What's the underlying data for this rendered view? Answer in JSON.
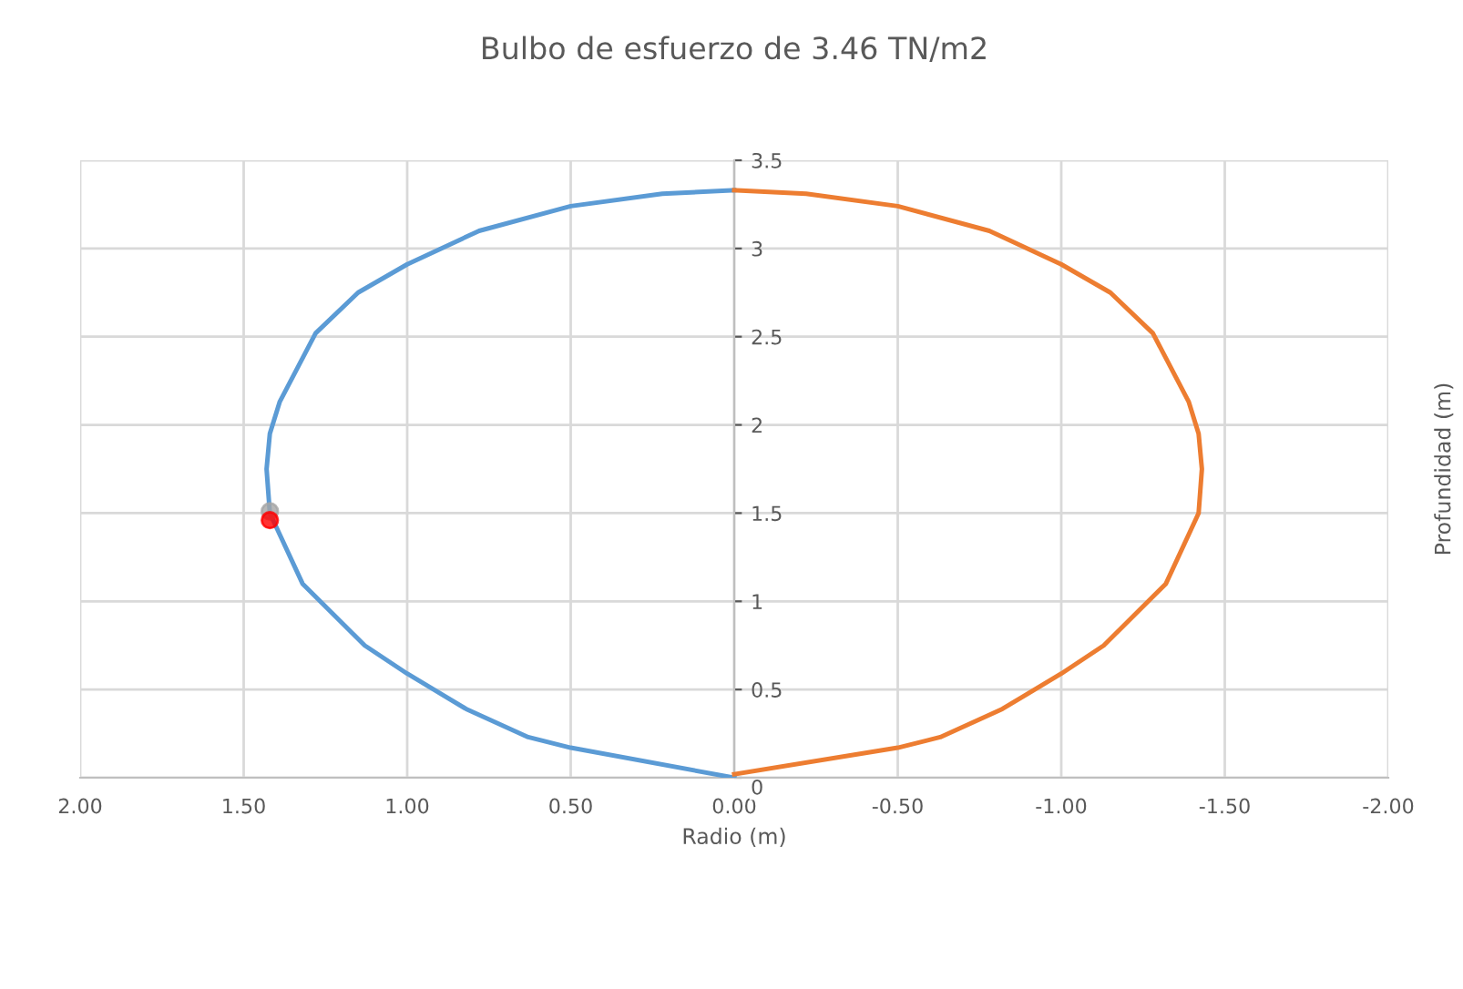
{
  "chart_data": {
    "type": "line",
    "title": "Bulbo de esfuerzo de 3.46 TN/m2",
    "xlabel": "Radio (m)",
    "ylabel": "Profundidad (m)",
    "xlim": [
      2,
      -2
    ],
    "ylim": [
      0,
      3.5
    ],
    "xticks": [
      {
        "value": 2,
        "label": "2.00"
      },
      {
        "value": 1.5,
        "label": "1.50"
      },
      {
        "value": 1,
        "label": "1.00"
      },
      {
        "value": 0.5,
        "label": "0.50"
      },
      {
        "value": 0,
        "label": "0.00"
      },
      {
        "value": -0.5,
        "label": "-0.50"
      },
      {
        "value": -1,
        "label": "-1.00"
      },
      {
        "value": -1.5,
        "label": "-1.50"
      },
      {
        "value": -2,
        "label": "-2.00"
      }
    ],
    "yticks": [
      0,
      0.5,
      1,
      1.5,
      2,
      2.5,
      3,
      3.5
    ],
    "grid": true,
    "marker": "none",
    "line_style": "solid",
    "series": [
      {
        "color": "#5b9bd5",
        "x": [
          0,
          0.5,
          0.63,
          0.82,
          1.0,
          1.13,
          1.32,
          1.42,
          1.43,
          1.42,
          1.39,
          1.28,
          1.15,
          1.0,
          0.78,
          0.5,
          0.22,
          0
        ],
        "values": [
          0,
          0.17,
          0.23,
          0.39,
          0.59,
          0.75,
          1.1,
          1.5,
          1.75,
          1.95,
          2.13,
          2.52,
          2.75,
          2.91,
          3.1,
          3.24,
          3.31,
          3.33
        ]
      },
      {
        "color": "#ed7d31",
        "x": [
          0,
          -0.5,
          -0.63,
          -0.82,
          -1.0,
          -1.13,
          -1.32,
          -1.42,
          -1.43,
          -1.42,
          -1.39,
          -1.28,
          -1.15,
          -1.0,
          -0.78,
          -0.5,
          -0.22,
          0
        ],
        "values": [
          0.02,
          0.17,
          0.23,
          0.39,
          0.59,
          0.75,
          1.1,
          1.5,
          1.75,
          1.95,
          2.13,
          2.52,
          2.75,
          2.91,
          3.1,
          3.24,
          3.31,
          3.33
        ]
      },
      {
        "type": "scatter",
        "marker": "circle",
        "color": "#a5a5a5",
        "x": [
          1.42
        ],
        "values": [
          1.51
        ]
      },
      {
        "type": "scatter",
        "marker": "circle",
        "color": "#ff0000",
        "x": [
          1.42
        ],
        "values": [
          1.46
        ]
      }
    ]
  }
}
